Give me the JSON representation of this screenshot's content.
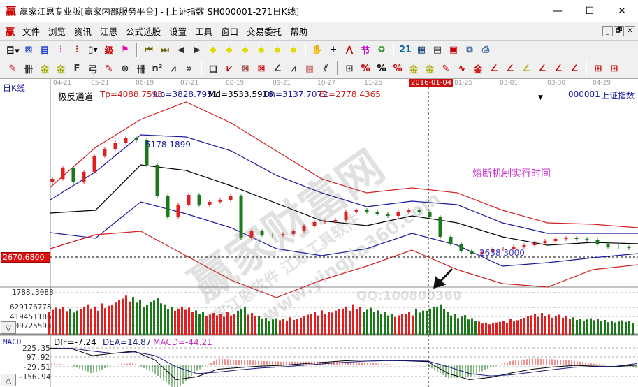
{
  "window": {
    "title": "赢家江恩专业版[赢家内部服务平台] - [上证指数  SH000001-271日K线]",
    "logo": "赢",
    "controls": {
      "minimize": "—",
      "maximize": "☐",
      "close": "✕"
    }
  },
  "menu": {
    "logo": "赢",
    "items": [
      "文件",
      "浏览",
      "资讯",
      "江恩",
      "公式选股",
      "设置",
      "工具",
      "窗口",
      "交易委托",
      "帮助"
    ],
    "mdi": [
      "_",
      "🗗",
      "✕"
    ]
  },
  "toolbar1": [
    {
      "name": "period-day",
      "g": "日▾",
      "c": "#000"
    },
    {
      "name": "chart-mode",
      "g": "⊠",
      "c": "#2244cc"
    },
    {
      "name": "list",
      "g": "目",
      "c": "#2244cc"
    },
    {
      "name": "kline3",
      "g": "⫶",
      "c": "#c0c"
    },
    {
      "name": "kline9",
      "g": "⫶",
      "c": "#c00"
    },
    {
      "name": "candle",
      "g": "▯▾",
      "c": "#000"
    },
    {
      "name": "gann",
      "g": "级",
      "c": "#c00"
    },
    {
      "name": "flag",
      "g": "⚑",
      "c": "#e0a"
    },
    "sep",
    {
      "name": "first",
      "g": "⏮",
      "c": "#660"
    },
    {
      "name": "last",
      "g": "⏭",
      "c": "#660"
    },
    {
      "name": "prev",
      "g": "◀",
      "c": "#333"
    },
    {
      "name": "next",
      "g": "▶",
      "c": "#333"
    },
    {
      "name": "move-left",
      "g": "◆",
      "c": "#dd0"
    },
    {
      "name": "move-right",
      "g": "◆",
      "c": "#dd0"
    },
    {
      "name": "expand",
      "g": "◆",
      "c": "#dd0"
    },
    {
      "name": "shrink",
      "g": "◆",
      "c": "#dd0"
    },
    {
      "name": "zoom-in",
      "g": "◆",
      "c": "#dd0"
    },
    {
      "name": "zoom-out",
      "g": "◆",
      "c": "#dd0"
    },
    "sep",
    {
      "name": "hand",
      "g": "✋",
      "c": "#333"
    },
    {
      "name": "crosshair",
      "g": "+",
      "c": "#000"
    },
    {
      "name": "polyline",
      "g": "⋀",
      "c": "#c00"
    },
    {
      "name": "festival",
      "g": "节",
      "c": "#c0c"
    },
    {
      "name": "recycle",
      "g": "♻",
      "c": "#393"
    },
    "sep",
    {
      "name": "calendar",
      "g": "21",
      "c": "#069"
    },
    {
      "name": "calculator",
      "g": "▦",
      "c": "#036"
    },
    {
      "name": "notes",
      "g": "▤",
      "c": "#333"
    },
    {
      "name": "save",
      "g": "▣",
      "c": "#c00"
    },
    {
      "name": "network",
      "g": "⧉",
      "c": "#369"
    },
    {
      "name": "printer",
      "g": "⎙",
      "c": "#369"
    }
  ],
  "toolbar2": [
    {
      "name": "pen",
      "g": "✎",
      "c": "#c00"
    },
    {
      "name": "gann-lines",
      "g": "卌",
      "c": "#333"
    },
    {
      "name": "gold1",
      "g": "金",
      "c": "#aa0"
    },
    {
      "name": "gold2",
      "g": "金",
      "c": "#aa0"
    },
    {
      "name": "fib",
      "g": "F",
      "c": "#333"
    },
    {
      "name": "spiral",
      "g": "弓",
      "c": "#333"
    },
    {
      "name": "brush",
      "g": "✎",
      "c": "#c00"
    },
    {
      "name": "circle",
      "g": "⊕",
      "c": "#333"
    },
    {
      "name": "grid-lines",
      "g": "卌",
      "c": "#333"
    },
    {
      "name": "n2",
      "g": "n²",
      "c": "#333"
    },
    {
      "name": "angle",
      "g": "⩘",
      "c": "#333"
    },
    {
      "name": "more",
      "g": "»",
      "c": "#333"
    },
    "sep",
    {
      "name": "box-tool",
      "g": "口",
      "c": "#333"
    },
    {
      "name": "fan",
      "g": "⩗",
      "c": "#c00"
    },
    {
      "name": "gann-box",
      "g": "⊠",
      "c": "#933"
    },
    {
      "name": "gann-square",
      "g": "⊠",
      "c": "#c00"
    },
    {
      "name": "angle2",
      "g": "∠",
      "c": "#333"
    },
    {
      "name": "zigzag",
      "g": "⩘",
      "c": "#333"
    },
    {
      "name": "grid",
      "g": "▦",
      "c": "#c66"
    },
    {
      "name": "parallel",
      "g": "⫽",
      "c": "#333"
    },
    "sep",
    {
      "name": "stats",
      "g": "⊞",
      "c": "#333"
    },
    {
      "name": "percent-red",
      "g": "%",
      "c": "#c00"
    },
    {
      "name": "percent",
      "g": "%",
      "c": "#000"
    },
    {
      "name": "percent-line",
      "g": "%",
      "c": "#c00"
    },
    {
      "name": "gold-circle",
      "g": "金",
      "c": "#aa0"
    },
    {
      "name": "gold-line",
      "g": "金",
      "c": "#aa0"
    },
    {
      "name": "pen-line",
      "g": "✎",
      "c": "#c00"
    },
    {
      "name": "wave",
      "g": "∿",
      "c": "#c00"
    },
    {
      "name": "gold-box",
      "g": "金",
      "c": "#c00"
    },
    {
      "name": "angle-j",
      "g": "∠",
      "c": "#c00"
    },
    {
      "name": "angle-f",
      "g": "∠",
      "c": "#c00"
    },
    {
      "name": "angle-gold",
      "g": "∠",
      "c": "#aa0"
    },
    {
      "name": "angle-lian",
      "g": "∠",
      "c": "#c00"
    },
    {
      "name": "angle-ying",
      "g": "∠",
      "c": "#c00"
    },
    {
      "name": "angle-four",
      "g": "∠",
      "c": "#c00"
    },
    "sep",
    {
      "name": "layout1",
      "g": "⊞",
      "c": "#c00"
    },
    {
      "name": "layout2",
      "g": "⊞",
      "c": "#c00"
    }
  ],
  "chart_header": {
    "period": "日K线",
    "indicator": "极反通道",
    "tp": "Tp=4088.7593",
    "up": "Up=3828.7951",
    "md": "Md=3533.5916",
    "dn": "Dn=3137.7072",
    "bt": "Bt=2778.4365",
    "code": "000001",
    "name": "上证指数",
    "cursor_date": "2016-01-04"
  },
  "colors": {
    "up": "#e02020",
    "down": "#1a7a1a",
    "tp": "#d02020",
    "band": "#1a1aa0",
    "md": "#000000",
    "annotation": "#d030d0",
    "dif": "#000000",
    "dea": "#1a1a80",
    "macd": "#c030c0"
  },
  "chart_data": [
    {
      "type": "candlestick",
      "title": "",
      "x_ticks": [
        "04-21",
        "05-21",
        "06-19",
        "07-21",
        "08-19",
        "09-21",
        "10-27",
        "11-25",
        "2016-01-04",
        "01-25",
        "03-01",
        "03-30",
        "04-29"
      ],
      "close": [
        4306,
        4525,
        4233,
        4452,
        4788,
        4934,
        5065,
        5153,
        5109,
        4598,
        3941,
        3503,
        3766,
        3970,
        3766,
        3824,
        3868,
        3941,
        3065,
        3211,
        3138,
        3123,
        3152,
        3211,
        3328,
        3401,
        3415,
        3444,
        3620,
        3649,
        3620,
        3576,
        3532,
        3605,
        3649,
        3620,
        3503,
        3094,
        2948,
        2802,
        2744,
        2773,
        2831,
        2846,
        2890,
        2919,
        2963,
        3006,
        3050,
        3065,
        3050,
        3036,
        2948,
        2890,
        2875,
        2861
      ],
      "bands": {
        "Tp": [
          4131,
          4963,
          5547,
          5912,
          5474,
          4890,
          4306,
          4014,
          4116,
          4014,
          3649,
          3386,
          3357,
          3284
        ],
        "Up": [
          3868,
          4452,
          5226,
          5182,
          4890,
          4379,
          4014,
          3722,
          3839,
          3766,
          3386,
          3167,
          3167,
          3167
        ],
        "Md": [
          3590,
          3649,
          4598,
          4481,
          4160,
          3795,
          3430,
          3328,
          3532,
          3386,
          3094,
          2919,
          2977,
          2948
        ],
        "Dn": [
          3182,
          3065,
          3824,
          3576,
          3284,
          2846,
          2700,
          2846,
          3167,
          2919,
          2481,
          2554,
          2656,
          2744
        ],
        "Bt": [
          2846,
          3138,
          3211,
          2700,
          2189,
          1824,
          2189,
          2481,
          2817,
          2408,
          2116,
          2043,
          2408,
          2510
        ]
      },
      "high_label": "5178.1899",
      "low_label": "2638.3000",
      "price_marker": "2670.6800",
      "annotation": "熔断机制实行时间"
    },
    {
      "type": "bar",
      "title": "",
      "y_labels": [
        "1788.3088",
        "629176778",
        "419451186",
        "209725593"
      ],
      "volume_millions": [
        620,
        640,
        600,
        700,
        650,
        720,
        800,
        900,
        870,
        750,
        850,
        700,
        650,
        620,
        560,
        500,
        480,
        520,
        650,
        500,
        420,
        380,
        360,
        400,
        460,
        520,
        560,
        600,
        650,
        700,
        620,
        560,
        520,
        480,
        520,
        600,
        650,
        700,
        520,
        450,
        380,
        300,
        280,
        320,
        360,
        420,
        480,
        500,
        460,
        420,
        400,
        380,
        360,
        340,
        330,
        320
      ]
    },
    {
      "type": "line",
      "title": "MACD",
      "dif_label": "DIF=-7.24",
      "dea_label": "DEA=14.87",
      "macd_label": "MACD=-44.21",
      "y_labels": [
        "225.35",
        "97.92",
        "-29.51",
        "-156.94"
      ],
      "dif": [
        220,
        215,
        120,
        150,
        180,
        60,
        -200,
        -160,
        -60,
        -40,
        -20,
        -10,
        10,
        30,
        50,
        60,
        55,
        50,
        40,
        -120,
        -200,
        -170,
        -110,
        -60,
        -30,
        -10,
        -20,
        -25,
        -7.24
      ],
      "dea": [
        210,
        220,
        180,
        150,
        170,
        120,
        -30,
        -120,
        -100,
        -70,
        -45,
        -30,
        -10,
        10,
        30,
        45,
        52,
        52,
        48,
        -30,
        -120,
        -150,
        -135,
        -100,
        -65,
        -35,
        -25,
        -22,
        14.87
      ]
    }
  ],
  "scroll": {
    "down": "▽",
    "up": "△"
  },
  "watermarks": {
    "main": "赢家财富网",
    "url": "www.yingjia360.com",
    "qq": "QQ:100800360",
    "soft": "赢家江恩软件 江恩工具软件"
  }
}
